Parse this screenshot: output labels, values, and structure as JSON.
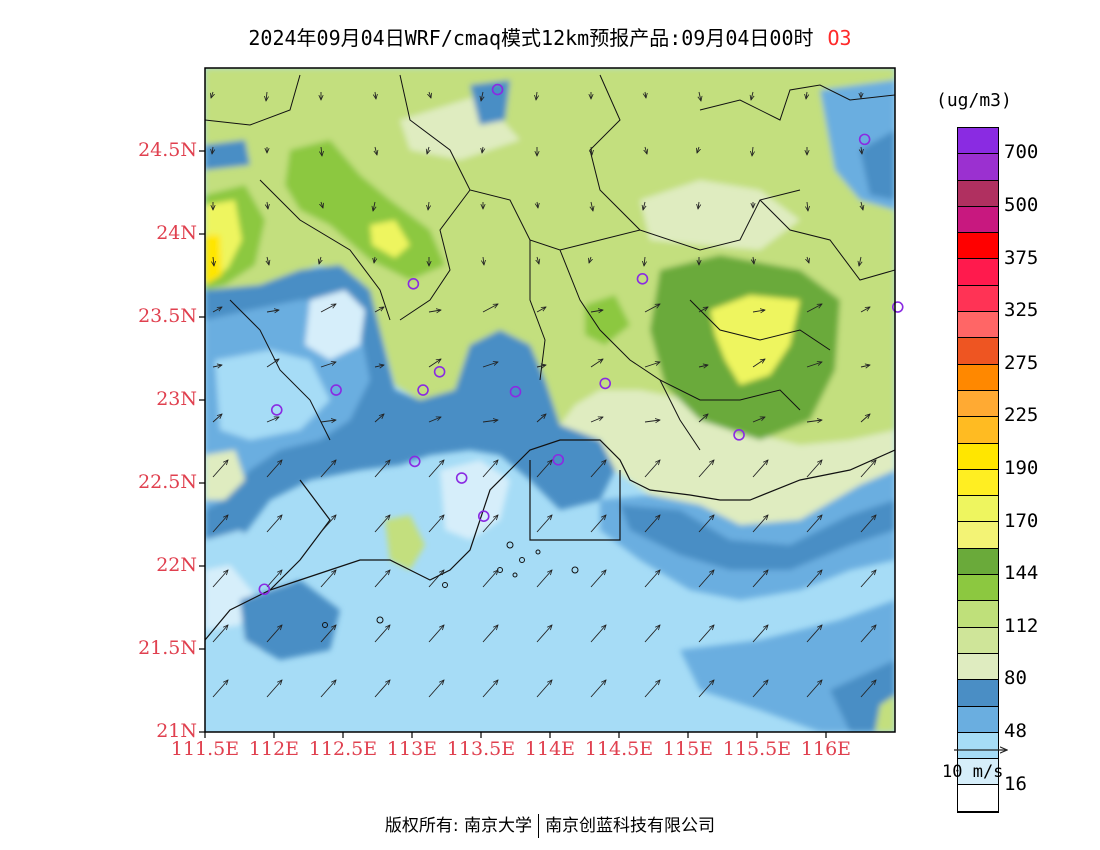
{
  "title": {
    "main": "2024年09月04日WRF/cmaq模式12km预报产品:09月04日00时",
    "variable": "O3"
  },
  "units": "(ug/m3)",
  "map": {
    "lon_range": [
      111.5,
      116.5
    ],
    "lat_range": [
      21.0,
      25.0
    ],
    "y_ticks": [
      {
        "lat": 24.5,
        "label": "24.5N"
      },
      {
        "lat": 24.0,
        "label": "24N"
      },
      {
        "lat": 23.5,
        "label": "23.5N"
      },
      {
        "lat": 23.0,
        "label": "23N"
      },
      {
        "lat": 22.5,
        "label": "22.5N"
      },
      {
        "lat": 22.0,
        "label": "22N"
      },
      {
        "lat": 21.5,
        "label": "21.5N"
      },
      {
        "lat": 21.0,
        "label": "21N"
      }
    ],
    "x_ticks": [
      {
        "lon": 111.5,
        "label": "111.5E"
      },
      {
        "lon": 112.0,
        "label": "112E"
      },
      {
        "lon": 112.5,
        "label": "112.5E"
      },
      {
        "lon": 113.0,
        "label": "113E"
      },
      {
        "lon": 113.5,
        "label": "113.5E"
      },
      {
        "lon": 114.0,
        "label": "114E"
      },
      {
        "lon": 114.5,
        "label": "114.5E"
      },
      {
        "lon": 115.0,
        "label": "115E"
      },
      {
        "lon": 115.5,
        "label": "115.5E"
      },
      {
        "lon": 116.0,
        "label": "116E"
      }
    ],
    "stations": [
      [
        113.62,
        24.87
      ],
      [
        116.28,
        24.57
      ],
      [
        113.01,
        23.7
      ],
      [
        114.67,
        23.73
      ],
      [
        116.52,
        23.56
      ],
      [
        113.2,
        23.17
      ],
      [
        112.45,
        23.06
      ],
      [
        113.08,
        23.06
      ],
      [
        113.75,
        23.05
      ],
      [
        114.4,
        23.1
      ],
      [
        112.02,
        22.94
      ],
      [
        115.37,
        22.79
      ],
      [
        113.02,
        22.63
      ],
      [
        114.06,
        22.64
      ],
      [
        113.36,
        22.53
      ],
      [
        113.52,
        22.3
      ],
      [
        111.93,
        21.86
      ]
    ]
  },
  "colorbar": {
    "labels": [
      "700",
      "500",
      "375",
      "325",
      "275",
      "225",
      "190",
      "170",
      "144",
      "112",
      "80",
      "48",
      "16"
    ],
    "colors": [
      "#8a2be2",
      "#9b30d0",
      "#b03060",
      "#c8187f",
      "#ff0000",
      "#ff1a4d",
      "#ff3355",
      "#ff6666",
      "#ee5522",
      "#ff8800",
      "#ffaa33",
      "#ffbb22",
      "#ffe600",
      "#ffee22",
      "#eef55f",
      "#f3f375",
      "#6aaa3a",
      "#8cc840",
      "#bfe07a",
      "#cfe599",
      "#dfecc0",
      "#4a8ec5",
      "#6aaee0",
      "#a6dcf6",
      "#d6eefa",
      "#ffffff"
    ]
  },
  "wind_legend": {
    "label": "10 m/s"
  },
  "footer": {
    "left": "版权所有: 南京大学",
    "right": "南京创蓝科技有限公司"
  }
}
